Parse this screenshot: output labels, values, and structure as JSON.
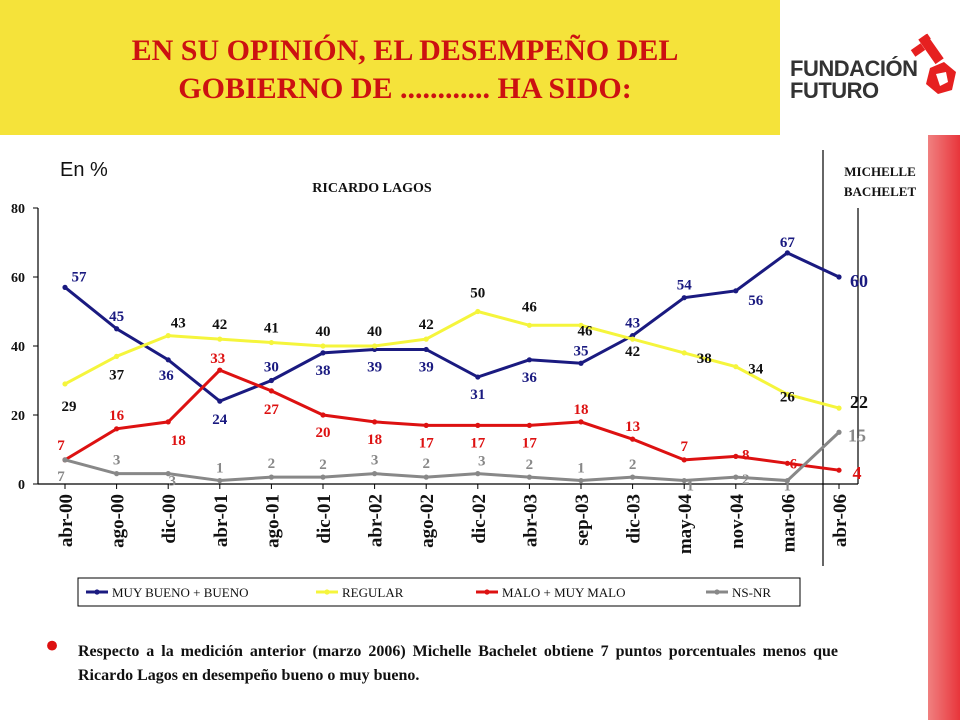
{
  "header": {
    "title": "EN SU OPINIÓN, EL DESEMPEÑO DEL GOBIERNO DE ............ HA SIDO:"
  },
  "logo": {
    "line1": "FUNDACIÓN",
    "line2": "FUTURO",
    "icon": "key-icon"
  },
  "colors": {
    "title_bg": "#f5e33a",
    "title_text": "#cc1111",
    "side_bar": "#e8353b"
  },
  "note": "Respecto a la medición anterior (marzo 2006) Michelle Bachelet obtiene 7 puntos porcentuales menos que Ricardo Lagos en desempeño bueno o muy bueno.",
  "chart_data": {
    "type": "line",
    "unit_label": "En %",
    "period_labels": [
      "RICARDO LAGOS",
      "MICHELLE BACHELET"
    ],
    "categories": [
      "abr-00",
      "ago-00",
      "dic-00",
      "abr-01",
      "ago-01",
      "dic-01",
      "abr-02",
      "ago-02",
      "dic-02",
      "abr-03",
      "sep-03",
      "dic-03",
      "may-04",
      "nov-04",
      "mar-06",
      "abr-06"
    ],
    "ylim": [
      0,
      80
    ],
    "yticks": [
      0,
      20,
      40,
      60,
      80
    ],
    "legend_position": "bottom",
    "grid": false,
    "series": [
      {
        "name": "MUY BUENO + BUENO",
        "color": "#1a1a80",
        "values": [
          57,
          45,
          36,
          24,
          30,
          38,
          39,
          39,
          31,
          36,
          35,
          43,
          54,
          56,
          67,
          60
        ]
      },
      {
        "name": "REGULAR",
        "color": "#f5f53c",
        "values": [
          29,
          37,
          43,
          42,
          41,
          40,
          40,
          42,
          50,
          46,
          46,
          42,
          38,
          34,
          26,
          22
        ]
      },
      {
        "name": "MALO + MUY MALO",
        "color": "#dd1111",
        "values": [
          7,
          16,
          18,
          33,
          27,
          20,
          18,
          17,
          17,
          17,
          18,
          13,
          7,
          8,
          6,
          4
        ]
      },
      {
        "name": "NS-NR",
        "color": "#888888",
        "values": [
          7,
          3,
          3,
          1,
          2,
          2,
          3,
          2,
          3,
          2,
          1,
          2,
          1,
          2,
          1,
          15
        ]
      }
    ]
  }
}
